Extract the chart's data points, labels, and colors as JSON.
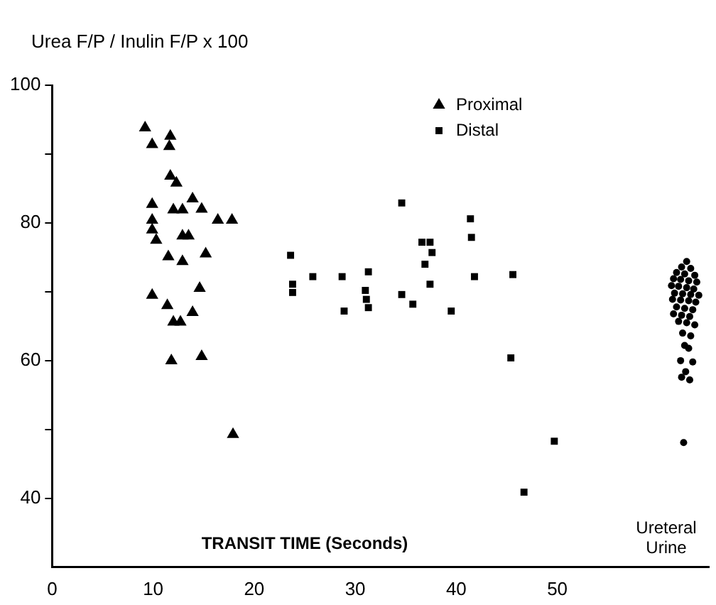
{
  "chart_data": {
    "type": "scatter",
    "ylabel": "Urea F/P / Inulin F/P x 100",
    "xlabel": "TRANSIT TIME (Seconds)",
    "xlim": [
      0,
      65
    ],
    "xticks": [
      0,
      10,
      20,
      30,
      40,
      50
    ],
    "ylim": [
      30,
      100
    ],
    "yticks": [
      40,
      {
        "value": 50,
        "label": null
      },
      60,
      {
        "value": 70,
        "label": null
      },
      80,
      {
        "value": 90,
        "label": null
      },
      100
    ],
    "legend": "top right",
    "grid": false,
    "series": [
      {
        "name": "Proximal",
        "color": "#000000",
        "marker": "triangle",
        "x": [
          9.2,
          9.9,
          11.7,
          11.6,
          9.9,
          9.9,
          9.9,
          10.3,
          11.7,
          12.3,
          12.0,
          12.9,
          13.9,
          14.8,
          16.4,
          17.8,
          12.9,
          13.5,
          11.5,
          12.9,
          15.2,
          9.9,
          11.4,
          12.0,
          12.7,
          13.9,
          14.6,
          11.8,
          14.8,
          17.9
        ],
        "values": [
          93.8,
          91.4,
          92.6,
          91.1,
          82.7,
          80.4,
          79,
          77.5,
          86.8,
          85.8,
          81.9,
          81.9,
          83.5,
          82.0,
          80.4,
          80.4,
          78.1,
          78.1,
          75.1,
          74.4,
          75.5,
          69.5,
          68.0,
          65.6,
          65.6,
          67.0,
          70.5,
          60,
          60.6,
          49.3
        ]
      },
      {
        "name": "Distal",
        "color": "#000000",
        "marker": "square",
        "x": [
          23.6,
          23.8,
          23.8,
          25.8,
          28.7,
          28.9,
          31.3,
          31.0,
          31.1,
          31.3,
          34.6,
          34.6,
          35.7,
          36.6,
          37.4,
          37.6,
          36.9,
          37.4,
          39.5,
          41.4,
          41.5,
          41.8,
          45.6,
          45.4,
          49.7,
          46.7
        ],
        "values": [
          75.3,
          71.1,
          69.9,
          72.2,
          72.2,
          67.2,
          72.9,
          70.2,
          68.9,
          67.7,
          82.9,
          69.6,
          68.2,
          77.2,
          77.2,
          75.7,
          74.0,
          71.1,
          67.2,
          80.6,
          77.9,
          72.2,
          72.5,
          60.4,
          48.3,
          40.9
        ]
      },
      {
        "color": "#000000",
        "marker": "circle",
        "x": [
          62.8,
          62.3,
          63.2,
          61.8,
          62.6,
          63.6,
          61.5,
          62.2,
          63.0,
          63.8,
          61.3,
          62.0,
          62.8,
          63.5,
          61.6,
          62.4,
          63.2,
          64.0,
          61.4,
          62.2,
          63.0,
          63.7,
          61.8,
          62.6,
          63.4,
          61.5,
          62.3,
          63.1,
          62.0,
          62.8,
          63.6,
          62.4,
          63.2,
          62.6,
          63.0,
          62.2,
          63.4,
          62.7,
          62.3,
          63.1,
          62.5
        ],
        "values": [
          74.4,
          73.6,
          73.4,
          72.8,
          72.6,
          72.4,
          71.9,
          71.8,
          71.6,
          71.4,
          70.9,
          70.8,
          70.6,
          70.4,
          69.8,
          69.7,
          69.6,
          69.5,
          68.9,
          68.8,
          68.7,
          68.5,
          67.8,
          67.6,
          67.4,
          66.8,
          66.6,
          66.4,
          65.7,
          65.5,
          65.2,
          64.0,
          63.6,
          62.2,
          61.8,
          60.0,
          59.8,
          58.4,
          57.6,
          57.2,
          48.1
        ]
      }
    ],
    "annotations": [
      "Ureteral Urine"
    ]
  }
}
